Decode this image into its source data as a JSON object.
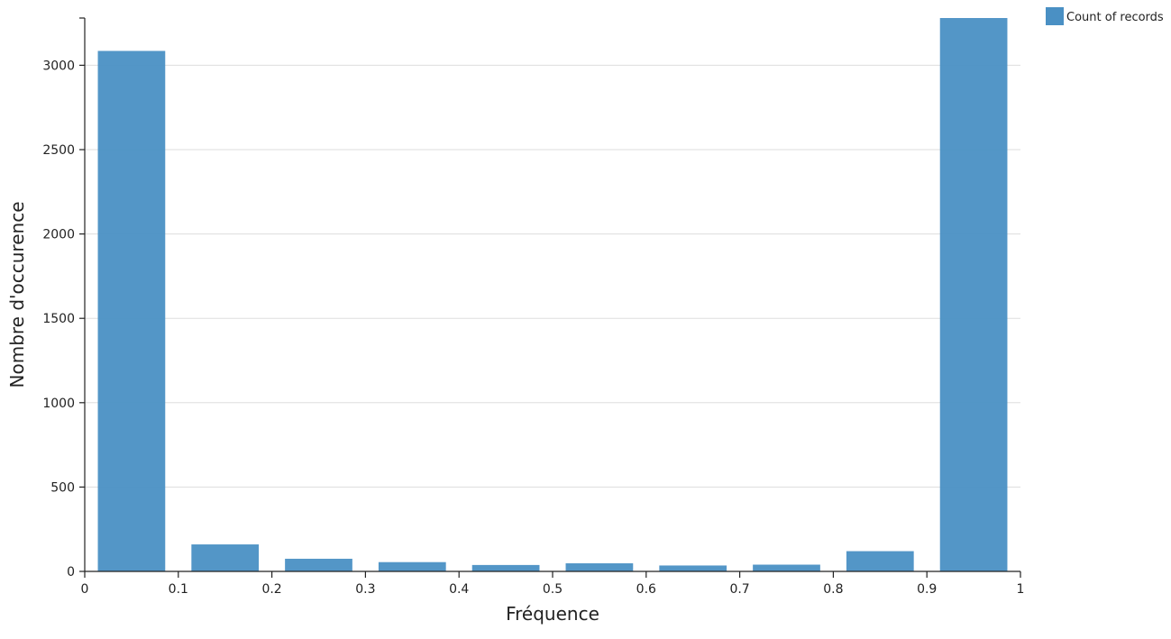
{
  "chart_data": {
    "type": "bar",
    "xlabel": "Fréquence",
    "ylabel": "Nombre d'occurence",
    "xlim": [
      0,
      1
    ],
    "ylim": [
      0,
      3280
    ],
    "xticks": [
      "0",
      "0.1",
      "0.2",
      "0.3",
      "0.4",
      "0.5",
      "0.6",
      "0.7",
      "0.8",
      "0.9",
      "1"
    ],
    "yticks": [
      "0",
      "500",
      "1000",
      "1500",
      "2000",
      "2500",
      "3000"
    ],
    "bins": [
      {
        "x0": 0.0,
        "x1": 0.1,
        "value": 3085
      },
      {
        "x0": 0.1,
        "x1": 0.2,
        "value": 160
      },
      {
        "x0": 0.2,
        "x1": 0.3,
        "value": 75
      },
      {
        "x0": 0.3,
        "x1": 0.4,
        "value": 55
      },
      {
        "x0": 0.4,
        "x1": 0.5,
        "value": 38
      },
      {
        "x0": 0.5,
        "x1": 0.6,
        "value": 48
      },
      {
        "x0": 0.6,
        "x1": 0.7,
        "value": 35
      },
      {
        "x0": 0.7,
        "x1": 0.8,
        "value": 40
      },
      {
        "x0": 0.8,
        "x1": 0.9,
        "value": 120
      },
      {
        "x0": 0.9,
        "x1": 1.0,
        "value": 3280
      }
    ],
    "series": [
      {
        "name": "Count of records"
      }
    ],
    "grid": true,
    "legend_position": "top-right",
    "bar_color": "#4a90c4"
  }
}
